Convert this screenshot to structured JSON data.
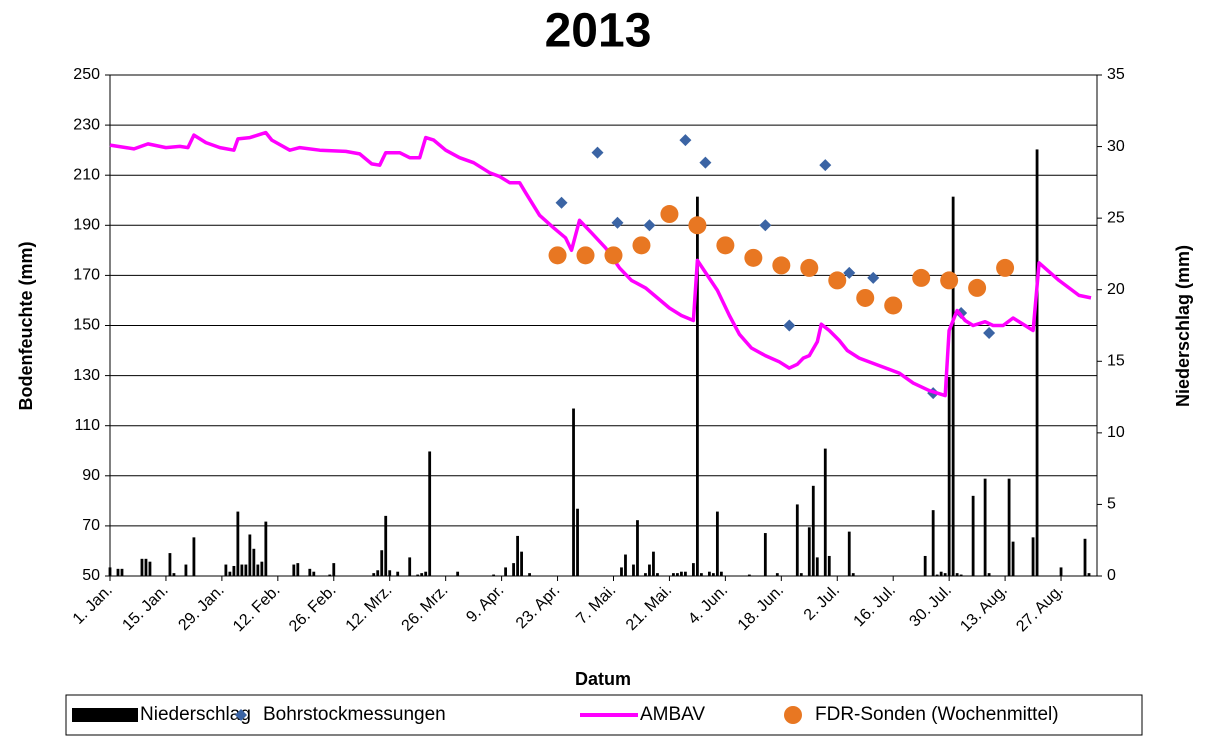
{
  "chart_data": {
    "type": "combo",
    "title": "2013",
    "x_label": "Datum",
    "y_label": "Bodenfeuchte (mm)",
    "y2_label": "Niederschlag (mm)",
    "xlim": [
      0,
      247
    ],
    "xticks": [
      {
        "value": 0,
        "label": "1. Jan."
      },
      {
        "value": 14,
        "label": "15. Jan."
      },
      {
        "value": 28,
        "label": "29. Jan."
      },
      {
        "value": 42,
        "label": "12. Feb."
      },
      {
        "value": 56,
        "label": "26. Feb."
      },
      {
        "value": 70,
        "label": "12. Mrz."
      },
      {
        "value": 84,
        "label": "26. Mrz."
      },
      {
        "value": 98,
        "label": "9. Apr."
      },
      {
        "value": 112,
        "label": "23. Apr."
      },
      {
        "value": 126,
        "label": "7. Mai."
      },
      {
        "value": 140,
        "label": "21. Mai."
      },
      {
        "value": 154,
        "label": "4. Jun."
      },
      {
        "value": 168,
        "label": "18. Jun."
      },
      {
        "value": 182,
        "label": "2. Jul."
      },
      {
        "value": 196,
        "label": "16. Jul."
      },
      {
        "value": 210,
        "label": "30. Jul."
      },
      {
        "value": 224,
        "label": "13. Aug."
      },
      {
        "value": 238,
        "label": "27. Aug."
      }
    ],
    "ylim": [
      50,
      250
    ],
    "yticks": [
      50,
      70,
      90,
      110,
      130,
      150,
      170,
      190,
      210,
      230,
      250
    ],
    "y2lim": [
      0,
      35
    ],
    "y2ticks": [
      0,
      5,
      10,
      15,
      20,
      25,
      30,
      35
    ],
    "grid": true,
    "legend": "bottom",
    "series": [
      {
        "name": "Niederschlag",
        "type": "bar",
        "axis": "y2",
        "color": "#000000",
        "x": [
          0,
          2,
          3,
          8,
          9,
          10,
          15,
          16,
          19,
          21,
          29,
          30,
          31,
          32,
          33,
          34,
          35,
          36,
          37,
          38,
          39,
          46,
          47,
          50,
          51,
          55,
          56,
          66,
          67,
          68,
          69,
          70,
          72,
          75,
          77,
          78,
          79,
          80,
          87,
          96,
          99,
          101,
          102,
          103,
          105,
          116,
          117,
          128,
          129,
          131,
          132,
          134,
          135,
          136,
          137,
          141,
          142,
          143,
          144,
          146,
          147,
          148,
          150,
          151,
          152,
          153,
          160,
          164,
          167,
          172,
          173,
          175,
          176,
          177,
          179,
          180,
          185,
          186,
          204,
          206,
          207,
          208,
          209,
          210,
          211,
          212,
          213,
          216,
          219,
          220,
          225,
          226,
          231,
          232,
          238,
          244,
          245
        ],
        "values": [
          0.6,
          0.5,
          0.5,
          1.2,
          1.2,
          1.0,
          1.6,
          0.2,
          0.8,
          2.7,
          0.8,
          0.3,
          0.7,
          4.5,
          0.8,
          0.8,
          2.9,
          1.9,
          0.8,
          1.0,
          3.8,
          0.8,
          0.9,
          0.5,
          0.3,
          0.1,
          0.9,
          0.2,
          0.4,
          1.8,
          4.2,
          0.4,
          0.3,
          1.3,
          0.1,
          0.2,
          0.3,
          8.7,
          0.3,
          0.1,
          0.6,
          0.9,
          2.8,
          1.7,
          0.2,
          11.7,
          4.7,
          0.6,
          1.5,
          0.8,
          3.9,
          0.2,
          0.8,
          1.7,
          0.2,
          0.2,
          0.2,
          0.3,
          0.3,
          0.9,
          26.5,
          0.2,
          0.3,
          0.2,
          4.5,
          0.3,
          0.1,
          3.0,
          0.2,
          5.0,
          0.2,
          3.4,
          6.3,
          1.3,
          8.9,
          1.4,
          3.1,
          0.2,
          1.4,
          4.6,
          0.1,
          0.3,
          0.2,
          13.9,
          26.5,
          0.2,
          0.1,
          5.6,
          6.8,
          0.2,
          6.8,
          2.4,
          2.7,
          29.8,
          0.6,
          2.6,
          0.2
        ]
      },
      {
        "name": "Bohrstockmessungen",
        "type": "scatter",
        "marker": "diamond",
        "color": "#3b64a4",
        "x": [
          113,
          122,
          127,
          135,
          144,
          149,
          164,
          170,
          179,
          185,
          191,
          206,
          213,
          220
        ],
        "values": [
          199,
          219,
          191,
          190,
          224,
          215,
          190,
          150,
          214,
          171,
          169,
          123,
          155,
          147
        ]
      },
      {
        "name": "AMBAV",
        "type": "line",
        "color": "#ff00ff",
        "x": [
          0,
          4,
          6,
          9.5,
          14,
          17.5,
          19.5,
          21,
          24,
          27.5,
          31,
          32,
          35,
          37,
          39,
          40.5,
          45,
          47.5,
          52.5,
          59,
          62.5,
          65.5,
          67.5,
          69,
          72.5,
          75,
          77.5,
          79,
          81,
          84,
          87.5,
          91,
          95,
          97.5,
          100,
          102.5,
          104,
          107.5,
          111,
          114,
          115.5,
          117.5,
          120.5,
          124,
          127.5,
          130.5,
          134,
          137,
          140,
          143,
          146,
          147,
          149.5,
          152,
          155,
          157.5,
          160.5,
          164,
          167.5,
          170,
          172,
          173.5,
          175,
          177,
          178,
          180,
          182.5,
          184.5,
          187.5,
          192.5,
          197.5,
          201,
          205,
          209,
          210,
          212,
          214,
          216,
          219,
          221,
          223.5,
          226,
          228,
          231,
          232.5,
          237.5,
          242.5,
          245.5
        ],
        "values": [
          222,
          221,
          220.5,
          222.5,
          221,
          221.5,
          221,
          226,
          223,
          221,
          220,
          224.5,
          225,
          226,
          227,
          224,
          220,
          221,
          220,
          219.5,
          218.5,
          214.5,
          214,
          219,
          219,
          217,
          217,
          225,
          224,
          220,
          217,
          215,
          211,
          209.5,
          207,
          207,
          203,
          194,
          189,
          185,
          180,
          192,
          187,
          181,
          173,
          168,
          165,
          161,
          157,
          154,
          152,
          176,
          170,
          164,
          154,
          146.5,
          141,
          138,
          135.5,
          133,
          134.5,
          137,
          138,
          143.5,
          150.5,
          148,
          144,
          140,
          137,
          134,
          131,
          127,
          124,
          122,
          148,
          156,
          152,
          150,
          151.5,
          150,
          150,
          153,
          151,
          148,
          175,
          168,
          162,
          161
        ]
      },
      {
        "name": "FDR-Sonden (Wochenmittel)",
        "type": "scatter",
        "marker": "circle",
        "color": "#e87722",
        "x": [
          112,
          119,
          126,
          133,
          140,
          147,
          154,
          161,
          168,
          175,
          182,
          189,
          196,
          203,
          210,
          217,
          224
        ],
        "values": [
          178,
          178,
          178,
          182,
          194.5,
          190,
          182,
          177,
          174,
          173,
          168,
          161,
          158,
          169,
          168,
          165,
          173
        ]
      }
    ]
  }
}
